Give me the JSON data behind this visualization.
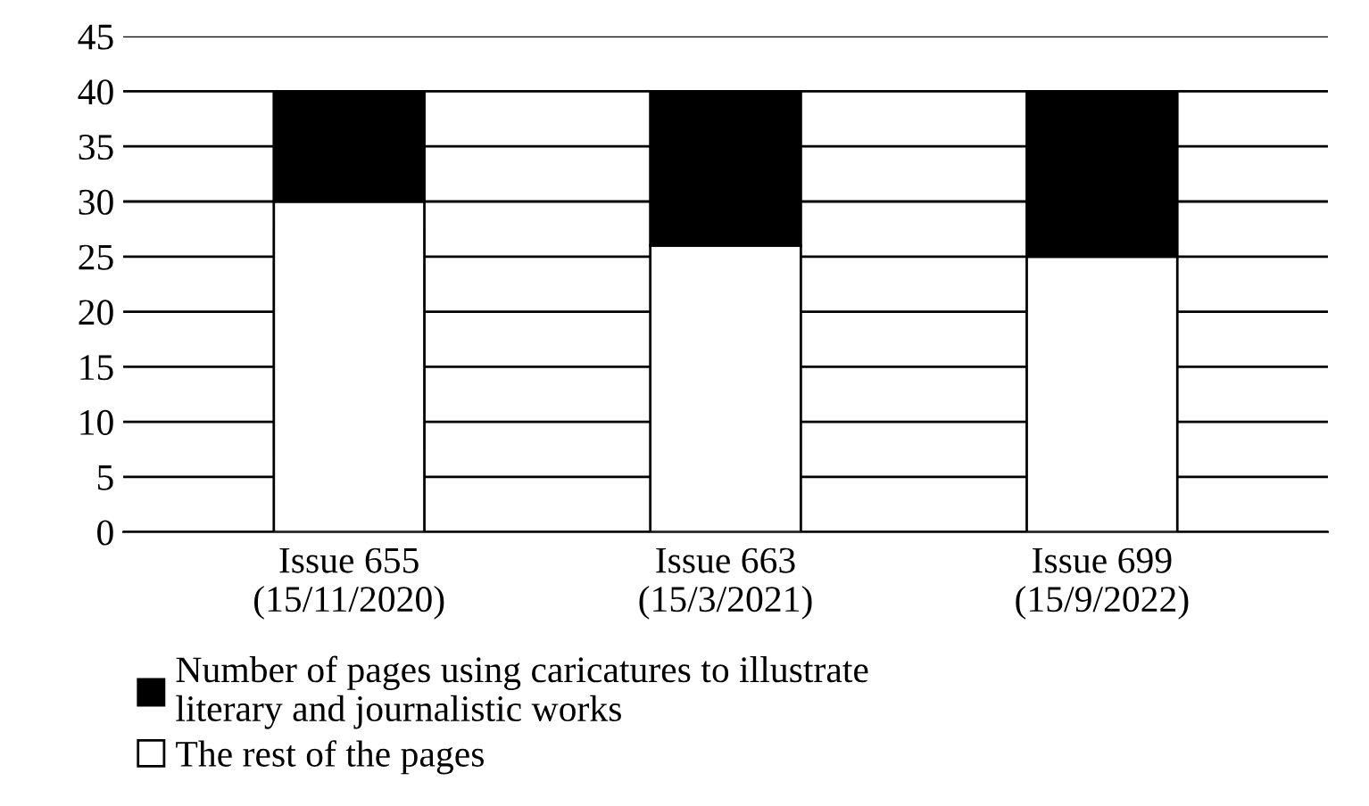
{
  "chart_data": {
    "type": "bar",
    "stacked": true,
    "categories": [
      "Issue 655\n(15/11/2020)",
      "Issue 663\n(15/3/2021)",
      "Issue 699\n(15/9/2022)"
    ],
    "series": [
      {
        "name": "The rest of the pages",
        "color": "#ffffff",
        "values": [
          30,
          26,
          25
        ]
      },
      {
        "name": "Number of pages using caricatures to illustrate\nliterary and journalistic works",
        "color": "#000000",
        "values": [
          10,
          14,
          15
        ]
      }
    ],
    "ylim": [
      0,
      45
    ],
    "yticks": [
      0,
      5,
      10,
      15,
      20,
      25,
      30,
      35,
      40,
      45
    ],
    "grid": "y",
    "legend": "bottom"
  }
}
